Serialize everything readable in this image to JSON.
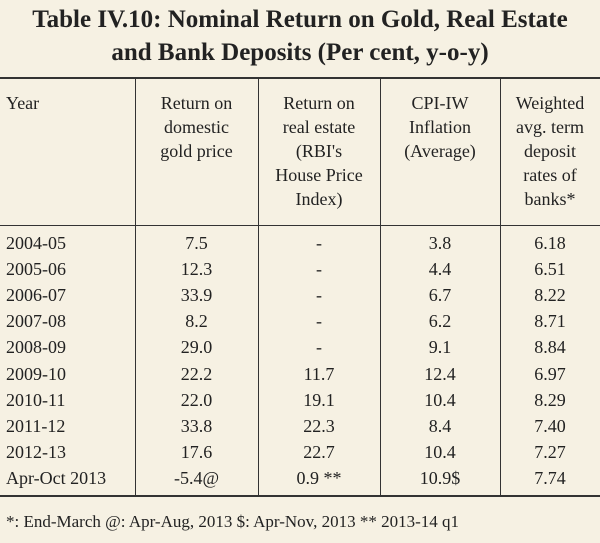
{
  "title": [
    "Table IV.10: Nominal Return on Gold, Real Estate",
    "and Bank Deposits (Per cent, y-o-y)"
  ],
  "table": {
    "headers": [
      [
        "Year"
      ],
      [
        "Return on",
        "domestic",
        "gold price"
      ],
      [
        "Return on",
        "real estate",
        "(RBI's",
        "House Price",
        "Index)"
      ],
      [
        "CPI-IW",
        "Inflation",
        "(Average)"
      ],
      [
        "Weighted",
        "avg. term",
        "deposit",
        "rates of",
        "banks*"
      ]
    ],
    "rows": [
      [
        "2004-05",
        "7.5",
        "-",
        "3.8",
        "6.18"
      ],
      [
        "2005-06",
        "12.3",
        "-",
        "4.4",
        "6.51"
      ],
      [
        "2006-07",
        "33.9",
        "-",
        "6.7",
        "8.22"
      ],
      [
        "2007-08",
        "8.2",
        "-",
        "6.2",
        "8.71"
      ],
      [
        "2008-09",
        "29.0",
        "-",
        "9.1",
        "8.84"
      ],
      [
        "2009-10",
        "22.2",
        "11.7",
        "12.4",
        "6.97"
      ],
      [
        "2010-11",
        "22.0",
        "19.1",
        "10.4",
        "8.29"
      ],
      [
        "2011-12",
        "33.8",
        "22.3",
        "8.4",
        "7.40"
      ],
      [
        "2012-13",
        "17.6",
        "22.7",
        "10.4",
        "7.27"
      ],
      [
        "Apr-Oct 2013",
        "-5.4@",
        "0.9 **",
        "10.9$",
        "7.74"
      ]
    ]
  },
  "footnote": "*: End-March @: Apr-Aug, 2013 $: Apr-Nov, 2013 ** 2013-14 q1"
}
